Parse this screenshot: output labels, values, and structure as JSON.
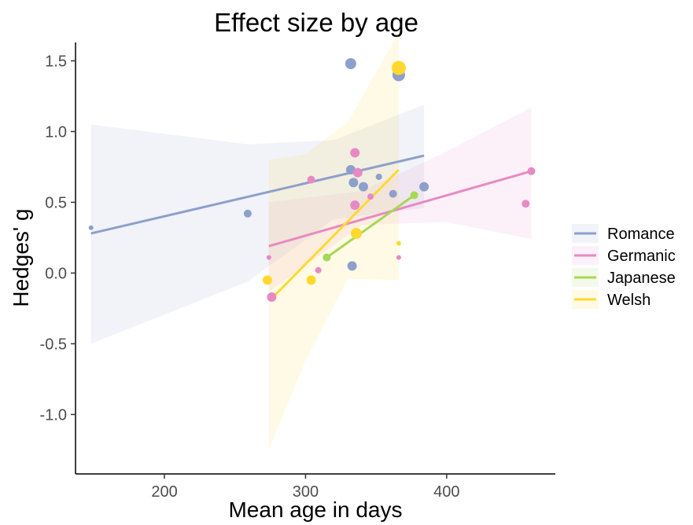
{
  "chart_data": {
    "type": "scatter",
    "title": "Effect size by age",
    "xlabel": "Mean age in days",
    "ylabel": "Hedges' g",
    "xlim": [
      137,
      477
    ],
    "ylim": [
      -1.42,
      1.63
    ],
    "xticks": [
      200,
      300,
      400
    ],
    "xtick_labels": [
      "200",
      "300",
      "400"
    ],
    "yticks": [
      -1.0,
      -0.5,
      0.0,
      0.5,
      1.0,
      1.5
    ],
    "ytick_labels": [
      "-1.0",
      "-0.5",
      "0.0",
      "0.5",
      "1.0",
      "1.5"
    ],
    "grid": false,
    "legend_position": "right",
    "series": [
      {
        "name": "Romance",
        "color": "#8DA0CB",
        "points": [
          {
            "x": 148,
            "y": 0.32,
            "size": 3
          },
          {
            "x": 259,
            "y": 0.42,
            "size": 5
          },
          {
            "x": 332,
            "y": 1.48,
            "size": 7
          },
          {
            "x": 332,
            "y": 0.73,
            "size": 6
          },
          {
            "x": 334,
            "y": 0.64,
            "size": 6
          },
          {
            "x": 341,
            "y": 0.61,
            "size": 6
          },
          {
            "x": 352,
            "y": 0.68,
            "size": 4
          },
          {
            "x": 362,
            "y": 0.56,
            "size": 5
          },
          {
            "x": 366,
            "y": 1.4,
            "size": 8
          },
          {
            "x": 384,
            "y": 0.61,
            "size": 6
          },
          {
            "x": 333,
            "y": 0.05,
            "size": 6
          }
        ],
        "fit": {
          "x": [
            148,
            384
          ],
          "y": [
            0.28,
            0.83
          ]
        },
        "band": {
          "x": [
            148,
            259,
            320,
            384
          ],
          "upper": [
            1.05,
            0.91,
            0.94,
            1.19
          ],
          "lower": [
            -0.5,
            -0.06,
            0.38,
            0.46
          ]
        }
      },
      {
        "name": "Germanic",
        "color": "#E78AC3",
        "points": [
          {
            "x": 274,
            "y": 0.11,
            "size": 3
          },
          {
            "x": 276,
            "y": -0.17,
            "size": 6
          },
          {
            "x": 304,
            "y": 0.66,
            "size": 5
          },
          {
            "x": 309,
            "y": 0.02,
            "size": 4
          },
          {
            "x": 335,
            "y": 0.85,
            "size": 6
          },
          {
            "x": 337,
            "y": 0.71,
            "size": 6
          },
          {
            "x": 335,
            "y": 0.48,
            "size": 6
          },
          {
            "x": 346,
            "y": 0.54,
            "size": 4
          },
          {
            "x": 366,
            "y": 0.11,
            "size": 3
          },
          {
            "x": 456,
            "y": 0.49,
            "size": 5
          },
          {
            "x": 460,
            "y": 0.72,
            "size": 5
          }
        ],
        "fit": {
          "x": [
            274,
            460
          ],
          "y": [
            0.19,
            0.72
          ]
        },
        "band": {
          "x": [
            274,
            340,
            400,
            460
          ],
          "upper": [
            0.5,
            0.58,
            0.86,
            1.17
          ],
          "lower": [
            -0.13,
            0.34,
            0.36,
            0.24
          ]
        }
      },
      {
        "name": "Japanese",
        "color": "#A6D854",
        "points": [
          {
            "x": 315,
            "y": 0.11,
            "size": 5
          },
          {
            "x": 377,
            "y": 0.55,
            "size": 5
          }
        ],
        "fit": {
          "x": [
            315,
            377
          ],
          "y": [
            0.11,
            0.55
          ]
        }
      },
      {
        "name": "Welsh",
        "color": "#FFD92F",
        "points": [
          {
            "x": 273,
            "y": -0.05,
            "size": 6
          },
          {
            "x": 304,
            "y": -0.05,
            "size": 6
          },
          {
            "x": 336,
            "y": 0.28,
            "size": 7
          },
          {
            "x": 366,
            "y": 1.45,
            "size": 9
          },
          {
            "x": 366,
            "y": 0.21,
            "size": 3
          }
        ],
        "fit": {
          "x": [
            276,
            366
          ],
          "y": [
            -0.18,
            0.73
          ]
        },
        "band": {
          "x": [
            274,
            300,
            330,
            366
          ],
          "upper": [
            0.8,
            0.84,
            1.07,
            1.7
          ],
          "lower": [
            -1.25,
            -0.62,
            -0.04,
            -0.05
          ]
        }
      }
    ]
  }
}
